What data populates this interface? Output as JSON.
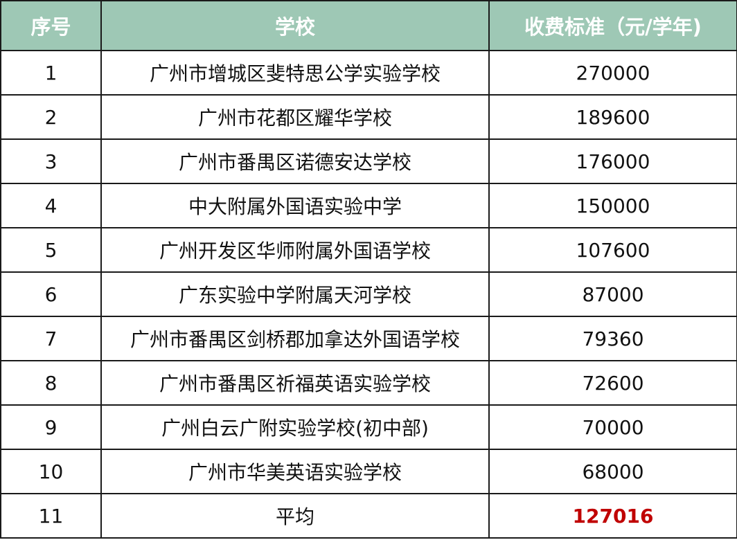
{
  "colors": {
    "header_bg": "#9ec8b5",
    "highlight": "#c00000"
  },
  "table": {
    "headers": [
      "序号",
      "学校",
      "收费标准（元/学年)"
    ],
    "rows": [
      [
        "1",
        "广州市增城区斐特思公学实验学校",
        "270000"
      ],
      [
        "2",
        "广州市花都区耀华学校",
        "189600"
      ],
      [
        "3",
        "广州市番禺区诺德安达学校",
        "176000"
      ],
      [
        "4",
        "中大附属外国语实验中学",
        "150000"
      ],
      [
        "5",
        "广州开发区华师附属外国语学校",
        "107600"
      ],
      [
        "6",
        "广东实验中学附属天河学校",
        "87000"
      ],
      [
        "7",
        "广州市番禺区剑桥郡加拿达外国语学校",
        "79360"
      ],
      [
        "8",
        "广州市番禺区祈福英语实验学校",
        "72600"
      ],
      [
        "9",
        "广州白云广附实验学校(初中部)",
        "70000"
      ],
      [
        "10",
        "广州市华美英语实验学校",
        "68000"
      ],
      [
        "11",
        "平均",
        "127016"
      ]
    ]
  }
}
